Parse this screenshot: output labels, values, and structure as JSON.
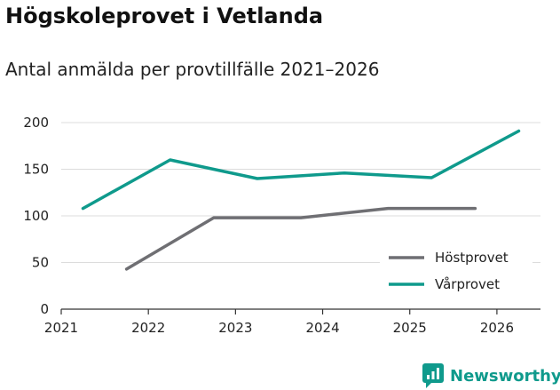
{
  "chart_data": {
    "type": "line",
    "title": "Högskoleprovet i Vetlanda",
    "subtitle": "Antal anmälda per provtillfälle 2021–2026",
    "xlabel": "",
    "ylabel": "",
    "ylim": [
      0,
      200
    ],
    "xlim": [
      2021,
      2026.5
    ],
    "yticks": [
      0,
      50,
      100,
      150,
      200
    ],
    "xticks": [
      2021,
      2022,
      2023,
      2024,
      2025,
      2026
    ],
    "grid": true,
    "legend_position": "bottom-right",
    "series": [
      {
        "name": "Höstprovet",
        "color": "#6f6f73",
        "x": [
          2021.75,
          2022.75,
          2023.75,
          2024.75,
          2025.75
        ],
        "values": [
          43,
          98,
          98,
          108,
          108
        ]
      },
      {
        "name": "Vårprovet",
        "color": "#0f9a8c",
        "x": [
          2021.25,
          2022.25,
          2023.25,
          2024.25,
          2025.25,
          2026.25
        ],
        "values": [
          108,
          160,
          140,
          146,
          141,
          191
        ]
      }
    ]
  },
  "brand": {
    "name": "Newsworthy",
    "color": "#0f9a8c"
  }
}
